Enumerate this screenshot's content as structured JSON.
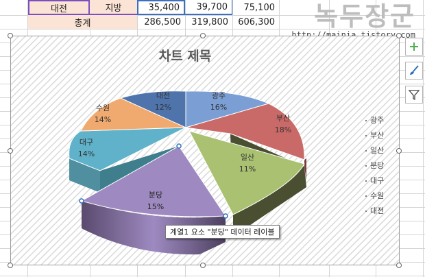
{
  "sheet": {
    "row_daejeon": {
      "name": "대전",
      "region": "지방",
      "v1": "35,400",
      "v2": "39,700",
      "total": "75,100"
    },
    "row_sum": {
      "label": "총계",
      "v1": "286,500",
      "v2": "319,800",
      "total": "606,300"
    }
  },
  "watermark": {
    "title": "녹두장군",
    "url": "http://mainia.tistory.com"
  },
  "chart": {
    "title": "차트 제목",
    "tooltip": "계열1 요소 \"분당\" 데이터 레이블"
  },
  "chart_data": {
    "type": "pie",
    "title": "차트 제목",
    "categories": [
      "광주",
      "부산",
      "일산",
      "분당",
      "대구",
      "수원",
      "대전"
    ],
    "values": [
      16,
      18,
      11,
      15,
      14,
      14,
      12
    ],
    "labels": [
      "16%",
      "18%",
      "11%",
      "15%",
      "14%",
      "14%",
      "12%"
    ],
    "legend": "right",
    "exploded": "분당",
    "colors": [
      "#7b9fd4",
      "#c96a68",
      "#a9c170",
      "#9e8ac0",
      "#5fb2c9",
      "#f0a96e",
      "#4e74ab"
    ]
  },
  "icons": [
    "plus-icon",
    "brush-icon",
    "filter-icon"
  ]
}
